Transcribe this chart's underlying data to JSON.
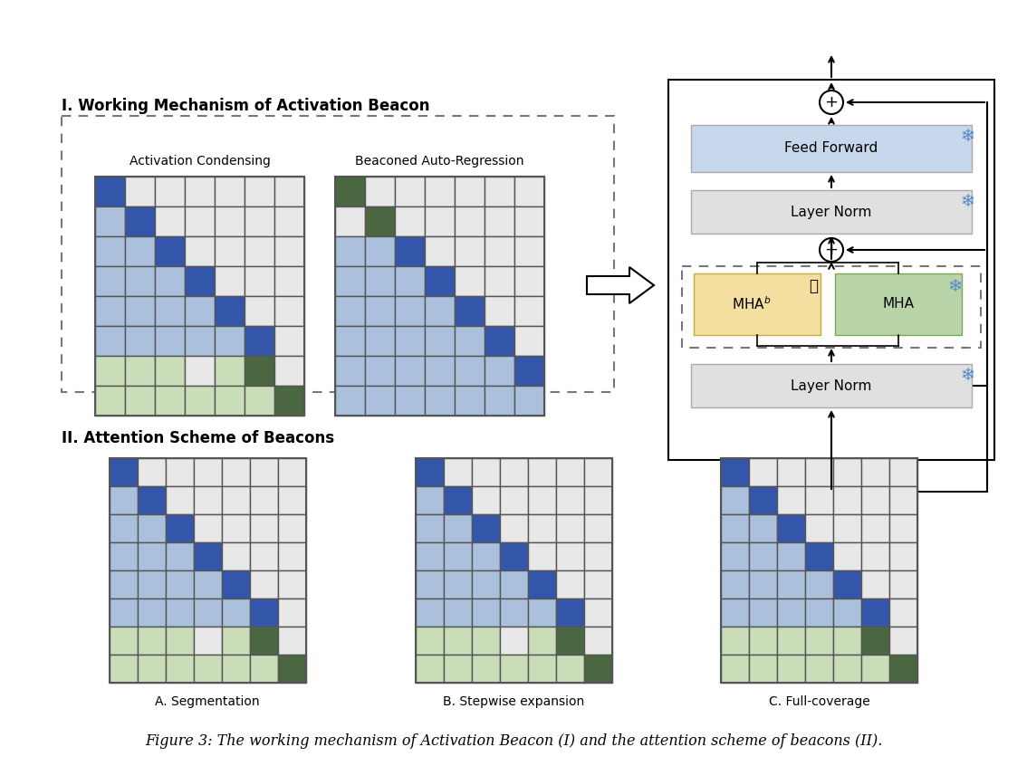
{
  "title": "Figure 3: The working mechanism of Activation Beacon (I) and the attention scheme of beacons (II).",
  "section1_title": "I. Working Mechanism of Activation Beacon",
  "section2_title": "II. Attention Scheme of Beacons",
  "colors": {
    "dark_blue": "#3355AA",
    "light_blue": "#AAC0DC",
    "light_green": "#C8DDB8",
    "dark_green": "#4A6741",
    "white": "#FFFFFF",
    "gray_cell": "#E8E8E8",
    "feed_forward_bg": "#C8D8EC",
    "layer_norm_bg": "#E0E0E0",
    "mha_b_bg": "#F5DFA0",
    "mha_bg": "#B8D4A8",
    "background": "#FFFFFF"
  },
  "condensing_grid": [
    [
      1,
      0,
      0,
      0,
      0,
      0,
      0
    ],
    [
      2,
      1,
      0,
      0,
      0,
      0,
      0
    ],
    [
      2,
      2,
      1,
      0,
      0,
      0,
      0
    ],
    [
      2,
      2,
      2,
      1,
      0,
      0,
      0
    ],
    [
      2,
      2,
      2,
      2,
      1,
      0,
      0
    ],
    [
      2,
      2,
      2,
      2,
      2,
      1,
      0
    ],
    [
      3,
      3,
      3,
      0,
      3,
      4,
      0
    ],
    [
      3,
      3,
      3,
      3,
      3,
      3,
      4
    ]
  ],
  "autoregress_grid": [
    [
      4,
      0,
      0,
      0,
      0,
      0,
      0
    ],
    [
      0,
      4,
      0,
      0,
      0,
      0,
      0
    ],
    [
      2,
      2,
      1,
      0,
      0,
      0,
      0
    ],
    [
      2,
      2,
      2,
      1,
      0,
      0,
      0
    ],
    [
      2,
      2,
      2,
      2,
      1,
      0,
      0
    ],
    [
      2,
      2,
      2,
      2,
      2,
      1,
      0
    ],
    [
      2,
      2,
      2,
      2,
      2,
      2,
      1
    ],
    [
      2,
      2,
      2,
      2,
      2,
      2,
      2
    ]
  ],
  "segmentation_grid": [
    [
      1,
      0,
      0,
      0,
      0,
      0,
      0
    ],
    [
      2,
      1,
      0,
      0,
      0,
      0,
      0
    ],
    [
      2,
      2,
      1,
      0,
      0,
      0,
      0
    ],
    [
      2,
      2,
      2,
      1,
      0,
      0,
      0
    ],
    [
      2,
      2,
      2,
      2,
      1,
      0,
      0
    ],
    [
      2,
      2,
      2,
      2,
      2,
      1,
      0
    ],
    [
      3,
      3,
      3,
      0,
      3,
      4,
      0
    ],
    [
      3,
      3,
      3,
      3,
      3,
      3,
      4
    ]
  ],
  "stepwise_grid": [
    [
      1,
      0,
      0,
      0,
      0,
      0,
      0
    ],
    [
      2,
      1,
      0,
      0,
      0,
      0,
      0
    ],
    [
      2,
      2,
      1,
      0,
      0,
      0,
      0
    ],
    [
      2,
      2,
      2,
      1,
      0,
      0,
      0
    ],
    [
      2,
      2,
      2,
      2,
      1,
      0,
      0
    ],
    [
      2,
      2,
      2,
      2,
      2,
      1,
      0
    ],
    [
      3,
      3,
      3,
      0,
      3,
      4,
      0
    ],
    [
      3,
      3,
      3,
      3,
      3,
      3,
      4
    ]
  ],
  "fullcoverage_grid": [
    [
      1,
      0,
      0,
      0,
      0,
      0,
      0
    ],
    [
      2,
      1,
      0,
      0,
      0,
      0,
      0
    ],
    [
      2,
      2,
      1,
      0,
      0,
      0,
      0
    ],
    [
      2,
      2,
      2,
      1,
      0,
      0,
      0
    ],
    [
      2,
      2,
      2,
      2,
      1,
      0,
      0
    ],
    [
      2,
      2,
      2,
      2,
      2,
      1,
      0
    ],
    [
      3,
      3,
      3,
      3,
      3,
      4,
      0
    ],
    [
      3,
      3,
      3,
      3,
      3,
      3,
      4
    ]
  ],
  "sub_labels": [
    "A. Segmentation",
    "B. Stepwise expansion",
    "C. Full-coverage"
  ],
  "sub1_label": "Activation Condensing",
  "sub2_label": "Beaconed Auto-Regression"
}
